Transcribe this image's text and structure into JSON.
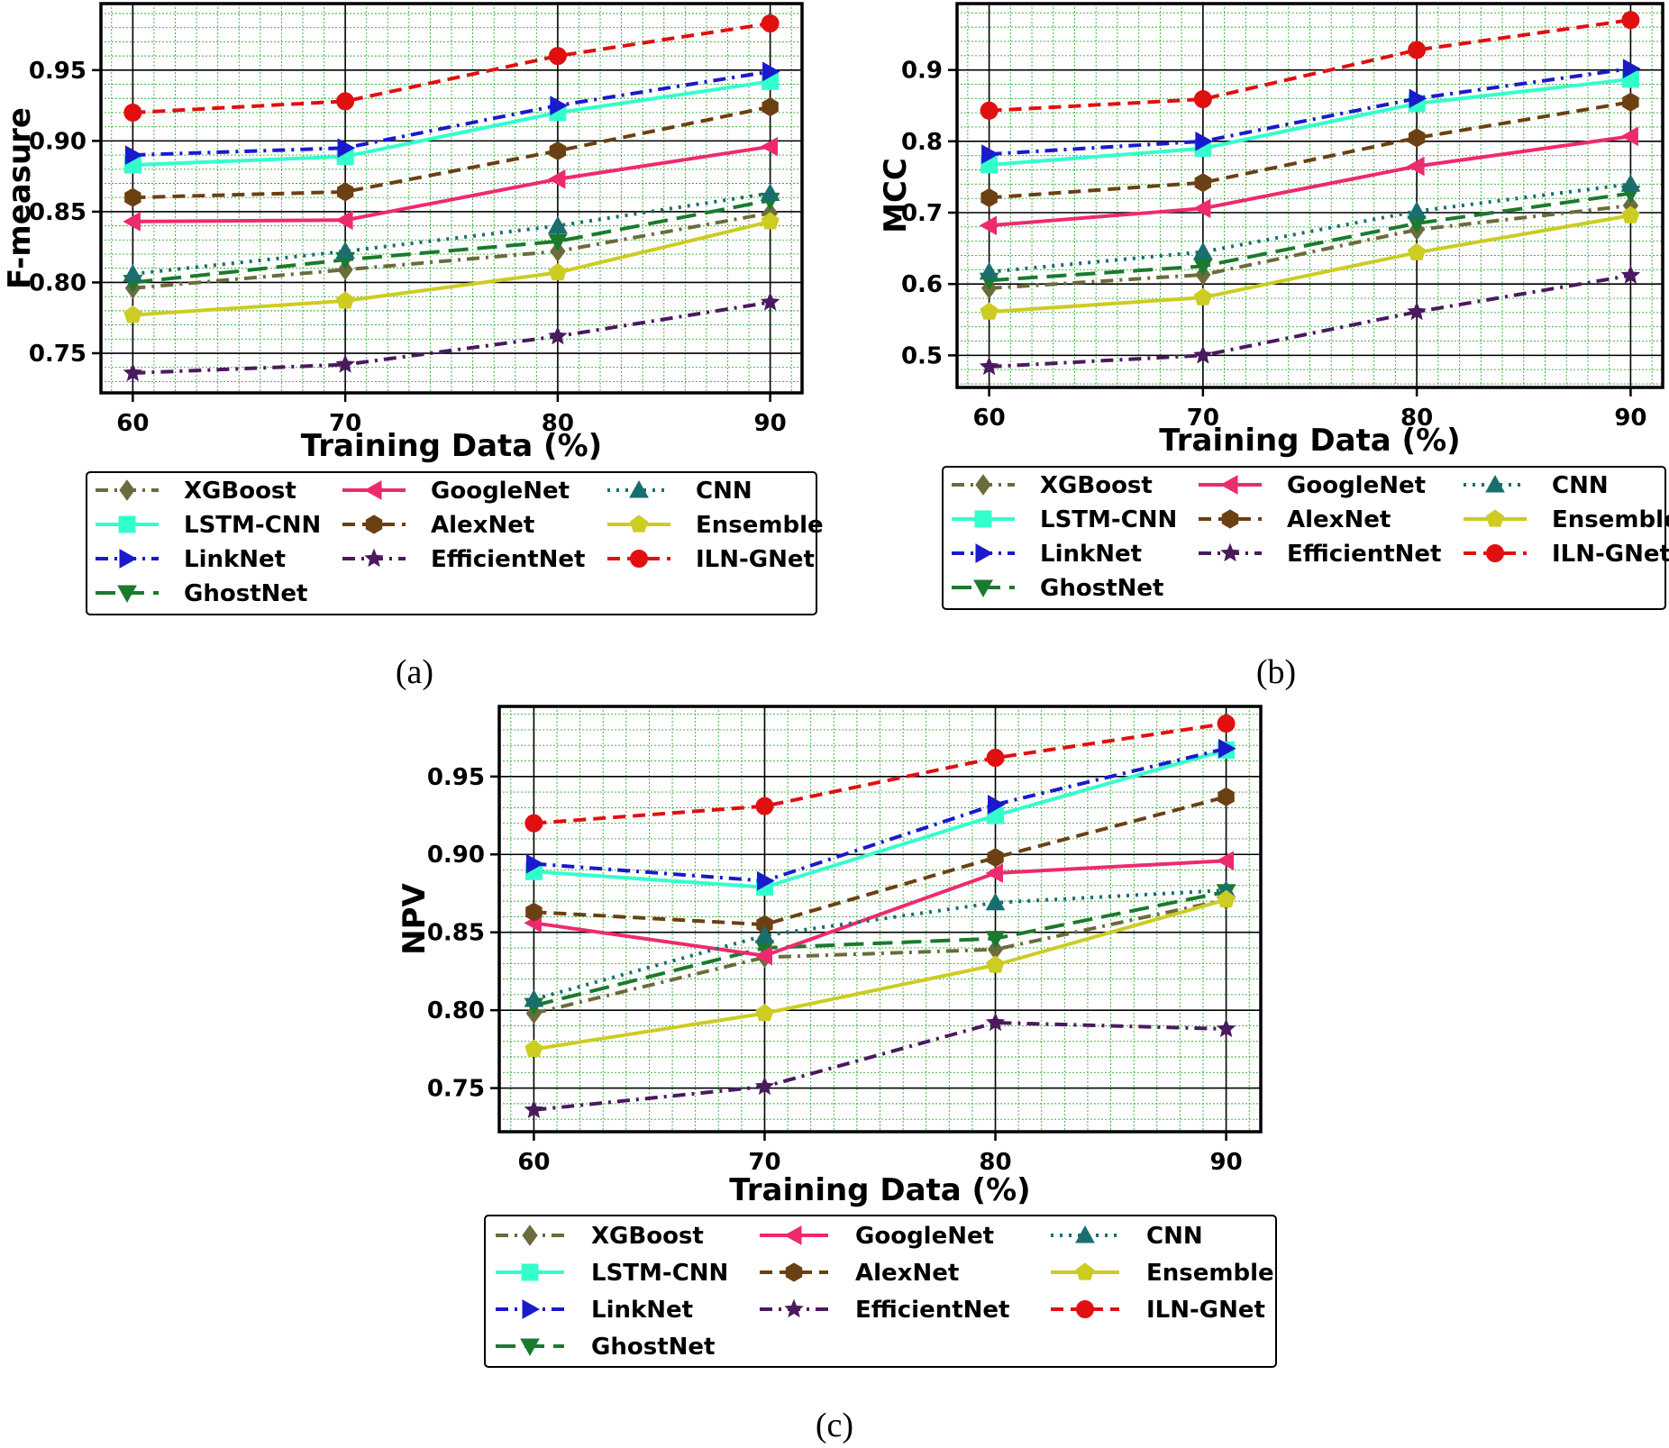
{
  "series_styles": [
    {
      "key": "XGBoost",
      "color": "#6b6b3c",
      "dash": "14,7,3,7",
      "marker": "diamond"
    },
    {
      "key": "LSTM-CNN",
      "color": "#33ffcc",
      "dash": "",
      "marker": "square"
    },
    {
      "key": "LinkNet",
      "color": "#1a1acc",
      "dash": "14,7,3,7",
      "marker": "triangle-right"
    },
    {
      "key": "GhostNet",
      "color": "#1a7a2e",
      "dash": "22,10",
      "marker": "triangle-down"
    },
    {
      "key": "GoogleNet",
      "color": "#ee2a6e",
      "dash": "",
      "marker": "triangle-left"
    },
    {
      "key": "AlexNet",
      "color": "#6b4012",
      "dash": "14,8",
      "marker": "hexagon"
    },
    {
      "key": "EfficientNet",
      "color": "#4a1a5e",
      "dash": "14,7,3,7",
      "marker": "star"
    },
    {
      "key": "CNN",
      "color": "#1a6e6e",
      "dash": "3,7",
      "marker": "triangle-up"
    },
    {
      "key": "Ensemble",
      "color": "#cccc22",
      "dash": "",
      "marker": "pentagon"
    },
    {
      "key": "ILN-GNet",
      "color": "#e01010",
      "dash": "14,8",
      "marker": "circle"
    }
  ],
  "chart_data": [
    {
      "type": "line",
      "caption": "(a)",
      "xlabel": "Training Data (%)",
      "ylabel": "F-measure",
      "x": [
        60,
        70,
        80,
        90
      ],
      "xticks": [
        "60",
        "70",
        "80",
        "90"
      ],
      "ylim": [
        0.722,
        0.997
      ],
      "yticks": [
        "0.75",
        "0.80",
        "0.85",
        "0.90",
        "0.95"
      ],
      "grid": "major and minor",
      "series": [
        {
          "name": "XGBoost",
          "values": [
            0.796,
            0.809,
            0.822,
            0.849
          ]
        },
        {
          "name": "LSTM-CNN",
          "values": [
            0.883,
            0.889,
            0.92,
            0.942
          ]
        },
        {
          "name": "LinkNet",
          "values": [
            0.89,
            0.895,
            0.925,
            0.949
          ]
        },
        {
          "name": "GhostNet",
          "values": [
            0.8,
            0.816,
            0.829,
            0.858
          ]
        },
        {
          "name": "GoogleNet",
          "values": [
            0.843,
            0.844,
            0.873,
            0.896
          ]
        },
        {
          "name": "AlexNet",
          "values": [
            0.86,
            0.864,
            0.893,
            0.924
          ]
        },
        {
          "name": "EfficientNet",
          "values": [
            0.736,
            0.742,
            0.762,
            0.786
          ]
        },
        {
          "name": "CNN",
          "values": [
            0.806,
            0.822,
            0.84,
            0.863
          ]
        },
        {
          "name": "Ensemble",
          "values": [
            0.777,
            0.787,
            0.807,
            0.843
          ]
        },
        {
          "name": "ILN-GNet",
          "values": [
            0.92,
            0.928,
            0.96,
            0.983
          ]
        }
      ],
      "legend": [
        "XGBoost",
        "GoogleNet",
        "CNN",
        "LSTM-CNN",
        "AlexNet",
        "Ensemble",
        "LinkNet",
        "EfficientNet",
        "ILN-GNet",
        "GhostNet"
      ]
    },
    {
      "type": "line",
      "caption": "(b)",
      "xlabel": "Training Data (%)",
      "ylabel": "MCC",
      "x": [
        60,
        70,
        80,
        90
      ],
      "xticks": [
        "60",
        "70",
        "80",
        "90"
      ],
      "ylim": [
        0.455,
        0.993
      ],
      "yticks": [
        "0.5",
        "0.6",
        "0.7",
        "0.8",
        "0.9"
      ],
      "grid": "major and minor",
      "series": [
        {
          "name": "XGBoost",
          "values": [
            0.594,
            0.613,
            0.676,
            0.71
          ]
        },
        {
          "name": "LSTM-CNN",
          "values": [
            0.767,
            0.79,
            0.853,
            0.887
          ]
        },
        {
          "name": "LinkNet",
          "values": [
            0.782,
            0.8,
            0.86,
            0.902
          ]
        },
        {
          "name": "GhostNet",
          "values": [
            0.605,
            0.625,
            0.685,
            0.727
          ]
        },
        {
          "name": "GoogleNet",
          "values": [
            0.682,
            0.706,
            0.765,
            0.807
          ]
        },
        {
          "name": "AlexNet",
          "values": [
            0.721,
            0.742,
            0.805,
            0.855
          ]
        },
        {
          "name": "EfficientNet",
          "values": [
            0.484,
            0.5,
            0.561,
            0.612
          ]
        },
        {
          "name": "CNN",
          "values": [
            0.617,
            0.645,
            0.702,
            0.74
          ]
        },
        {
          "name": "Ensemble",
          "values": [
            0.561,
            0.581,
            0.644,
            0.696
          ]
        },
        {
          "name": "ILN-GNet",
          "values": [
            0.843,
            0.859,
            0.928,
            0.97
          ]
        }
      ],
      "legend": [
        "XGBoost",
        "GoogleNet",
        "CNN",
        "LSTM-CNN",
        "AlexNet",
        "Ensemble",
        "LinkNet",
        "EfficientNet",
        "ILN-GNet",
        "GhostNet"
      ]
    },
    {
      "type": "line",
      "caption": "(c)",
      "xlabel": "Training Data (%)",
      "ylabel": "NPV",
      "x": [
        60,
        70,
        80,
        90
      ],
      "xticks": [
        "60",
        "70",
        "80",
        "90"
      ],
      "ylim": [
        0.722,
        0.995
      ],
      "yticks": [
        "0.75",
        "0.80",
        "0.85",
        "0.90",
        "0.95"
      ],
      "grid": "major and minor",
      "series": [
        {
          "name": "XGBoost",
          "values": [
            0.798,
            0.834,
            0.839,
            0.871
          ]
        },
        {
          "name": "LSTM-CNN",
          "values": [
            0.889,
            0.879,
            0.925,
            0.967
          ]
        },
        {
          "name": "LinkNet",
          "values": [
            0.894,
            0.883,
            0.932,
            0.968
          ]
        },
        {
          "name": "GhostNet",
          "values": [
            0.803,
            0.84,
            0.846,
            0.876
          ]
        },
        {
          "name": "GoogleNet",
          "values": [
            0.856,
            0.835,
            0.888,
            0.896
          ]
        },
        {
          "name": "AlexNet",
          "values": [
            0.863,
            0.855,
            0.898,
            0.937
          ]
        },
        {
          "name": "EfficientNet",
          "values": [
            0.736,
            0.751,
            0.792,
            0.788
          ]
        },
        {
          "name": "CNN",
          "values": [
            0.807,
            0.848,
            0.869,
            0.877
          ]
        },
        {
          "name": "Ensemble",
          "values": [
            0.775,
            0.798,
            0.829,
            0.871
          ]
        },
        {
          "name": "ILN-GNet",
          "values": [
            0.92,
            0.931,
            0.962,
            0.984
          ]
        }
      ],
      "legend": [
        "XGBoost",
        "GoogleNet",
        "CNN",
        "LSTM-CNN",
        "AlexNet",
        "Ensemble",
        "LinkNet",
        "EfficientNet",
        "ILN-GNet",
        "GhostNet"
      ]
    }
  ]
}
